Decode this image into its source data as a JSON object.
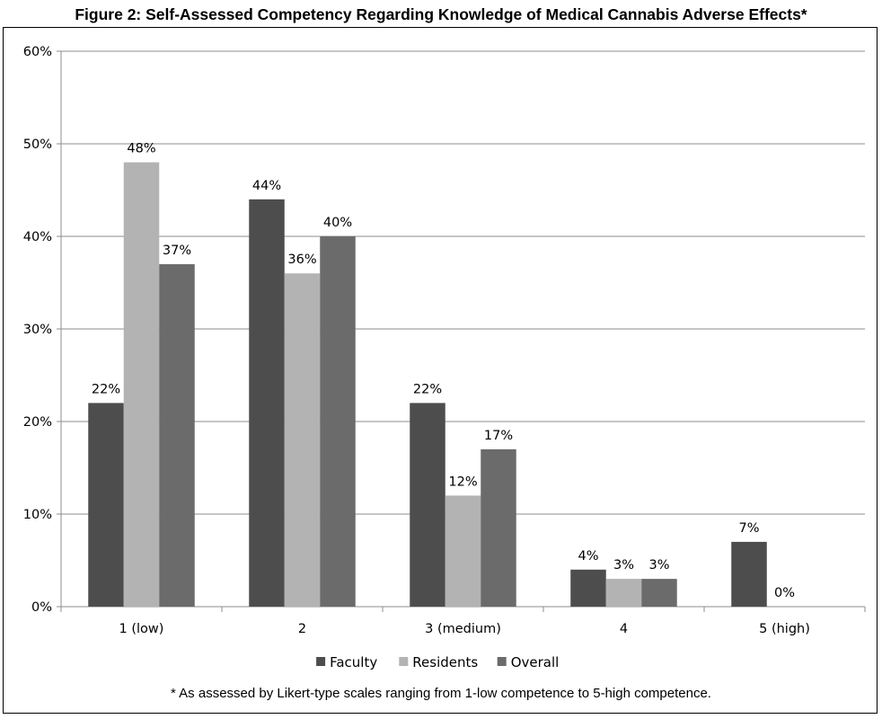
{
  "title": "Figure 2: Self-Assessed Competency Regarding Knowledge of Medical Cannabis Adverse Effects*",
  "footnote": "* As assessed by Likert-type scales ranging from 1-low competence to 5-high competence.",
  "chart_data": {
    "type": "bar",
    "title": "Figure 2: Self-Assessed Competency Regarding Knowledge of Medical Cannabis Adverse Effects*",
    "xlabel": "",
    "ylabel": "",
    "categories": [
      "1 (low)",
      "2",
      "3 (medium)",
      "4",
      "5 (high)"
    ],
    "series": [
      {
        "name": "Faculty",
        "values": [
          22,
          44,
          22,
          4,
          7
        ],
        "labels": [
          "22%",
          "44%",
          "22%",
          "4%",
          "7%"
        ],
        "color": "#4d4d4d"
      },
      {
        "name": "Residents",
        "values": [
          48,
          36,
          12,
          3,
          0
        ],
        "labels": [
          "48%",
          "36%",
          "12%",
          "3%",
          "0%"
        ],
        "color": "#b3b3b3"
      },
      {
        "name": "Overall",
        "values": [
          37,
          40,
          17,
          3,
          null
        ],
        "labels": [
          "37%",
          "40%",
          "17%",
          "3%",
          null
        ],
        "color": "#6b6b6b"
      }
    ],
    "ylim": [
      0,
      60
    ],
    "yticks": [
      0,
      10,
      20,
      30,
      40,
      50,
      60
    ],
    "ytick_labels": [
      "0%",
      "10%",
      "20%",
      "30%",
      "40%",
      "50%",
      "60%"
    ],
    "grid": true,
    "legend_position": "bottom"
  }
}
